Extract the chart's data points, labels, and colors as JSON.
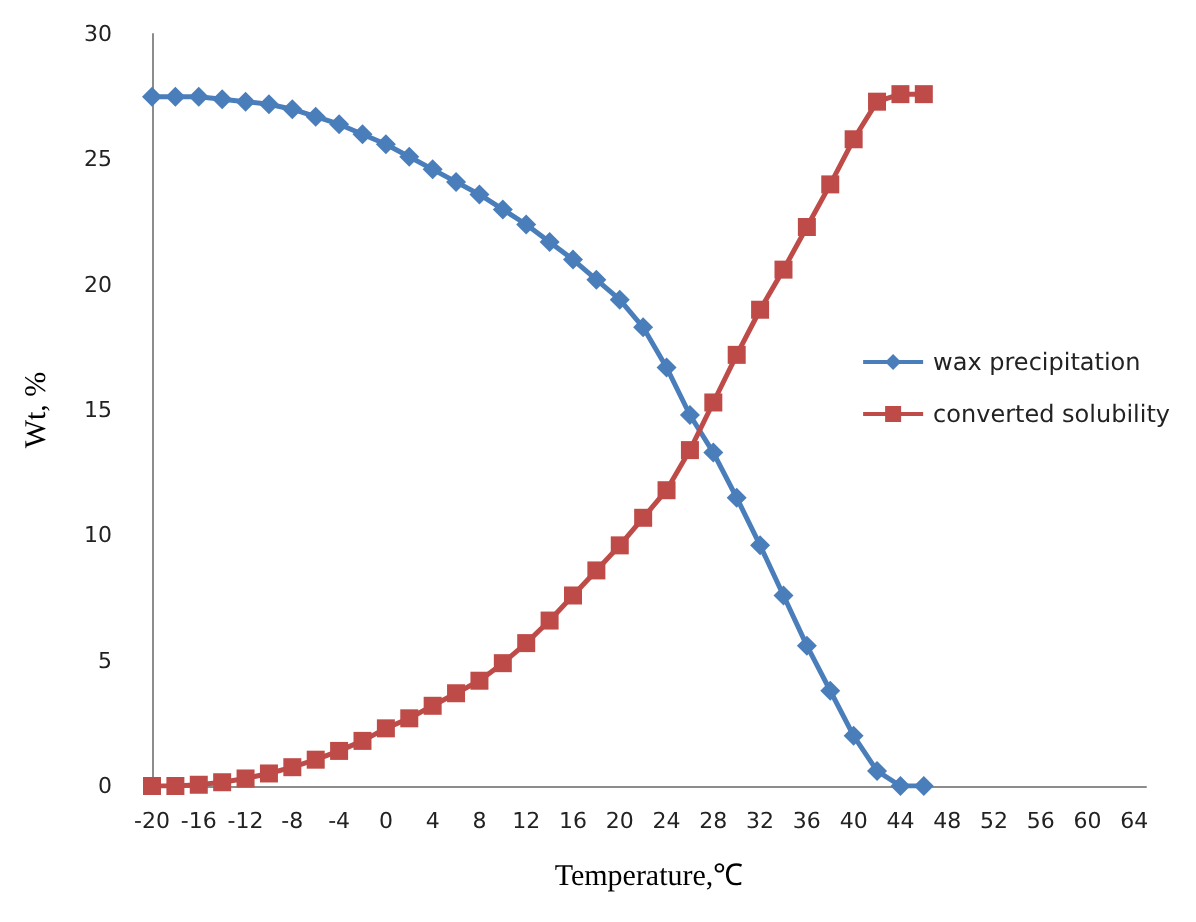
{
  "chart_data": {
    "type": "line",
    "xlabel": "Temperature,℃",
    "ylabel": "Wt, %",
    "x": [
      -20,
      -18,
      -16,
      -14,
      -12,
      -10,
      -8,
      -6,
      -4,
      -2,
      0,
      2,
      4,
      6,
      8,
      10,
      12,
      14,
      16,
      18,
      20,
      22,
      24,
      26,
      28,
      30,
      32,
      34,
      36,
      38,
      40,
      42,
      44,
      46
    ],
    "series": [
      {
        "name": "wax precipitation",
        "color": "#4a7ebb",
        "marker": "diamond",
        "values": [
          27.5,
          27.5,
          27.5,
          27.4,
          27.3,
          27.2,
          27.0,
          26.7,
          26.4,
          26.0,
          25.6,
          25.1,
          24.6,
          24.1,
          23.6,
          23.0,
          22.4,
          21.7,
          21.0,
          20.2,
          19.4,
          18.3,
          16.7,
          14.8,
          13.3,
          11.5,
          9.6,
          7.6,
          5.6,
          3.8,
          2.0,
          0.6,
          0,
          0
        ]
      },
      {
        "name": "converted solubility",
        "color": "#be4b48",
        "marker": "square",
        "values": [
          0,
          0,
          0.05,
          0.15,
          0.3,
          0.5,
          0.75,
          1.05,
          1.4,
          1.8,
          2.3,
          2.7,
          3.2,
          3.7,
          4.2,
          4.9,
          5.7,
          6.6,
          7.6,
          8.6,
          9.6,
          10.7,
          11.8,
          13.4,
          15.3,
          17.2,
          19.0,
          20.6,
          22.3,
          24.0,
          25.8,
          27.3,
          27.6,
          27.6
        ]
      }
    ],
    "xlim": [
      -20,
      65
    ],
    "xticks": [
      -20,
      -16,
      -12,
      -8,
      -4,
      0,
      4,
      8,
      12,
      16,
      20,
      24,
      28,
      32,
      36,
      40,
      44,
      48,
      52,
      56,
      60,
      64
    ],
    "ylim": [
      0,
      30
    ],
    "yticks": [
      0,
      5,
      10,
      15,
      20,
      25,
      30
    ],
    "grid": false,
    "legend": "right"
  }
}
